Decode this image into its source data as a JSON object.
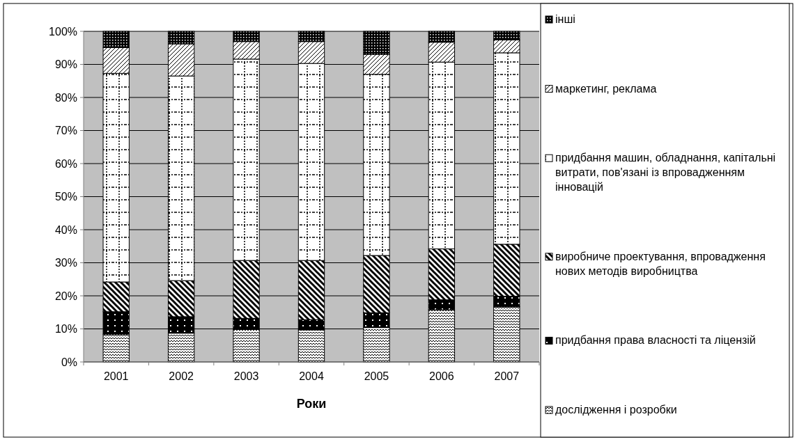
{
  "chart_data": {
    "type": "bar",
    "stacked": true,
    "xlabel": "Роки",
    "categories": [
      "2001",
      "2002",
      "2003",
      "2004",
      "2005",
      "2006",
      "2007"
    ],
    "ylim": [
      0,
      100
    ],
    "yticks": [
      {
        "value": 0,
        "label": "0%"
      },
      {
        "value": 10,
        "label": "10%"
      },
      {
        "value": 20,
        "label": "20%"
      },
      {
        "value": 30,
        "label": "30%"
      },
      {
        "value": 40,
        "label": "40%"
      },
      {
        "value": 50,
        "label": "50%"
      },
      {
        "value": 60,
        "label": "60%"
      },
      {
        "value": 70,
        "label": "70%"
      },
      {
        "value": 80,
        "label": "80%"
      },
      {
        "value": 90,
        "label": "90%"
      },
      {
        "value": 100,
        "label": "100%"
      }
    ],
    "grid": "y",
    "legend": "right",
    "series": [
      {
        "name": "дослідження і розробки",
        "color": "#000000",
        "values": [
          8.4,
          8.7,
          9.8,
          9.7,
          10.4,
          15.8,
          16.7
        ]
      },
      {
        "name": "придбання права власності та ліцензій",
        "color": "#000000",
        "values": [
          6.8,
          5.0,
          3.4,
          3.1,
          4.5,
          3.0,
          3.2
        ]
      },
      {
        "name": "виробниче проектування, впровадження нових методів виробництва",
        "color": "#000000",
        "values": [
          9.0,
          10.9,
          17.5,
          17.9,
          17.3,
          15.4,
          15.7
        ]
      },
      {
        "name": "придбання машин, обладнання, капітальні витрати, пов'язані із впровадженням інновацій",
        "color": "#000000",
        "values": [
          63.1,
          61.9,
          60.9,
          59.6,
          54.8,
          56.5,
          57.9
        ]
      },
      {
        "name": "маркетинг, реклама",
        "color": "#000000",
        "values": [
          7.8,
          9.7,
          5.3,
          6.6,
          6.0,
          6.0,
          3.9
        ]
      },
      {
        "name": "інші",
        "color": "#000000",
        "values": [
          4.9,
          3.8,
          3.1,
          3.1,
          7.0,
          3.3,
          2.6
        ]
      }
    ]
  }
}
